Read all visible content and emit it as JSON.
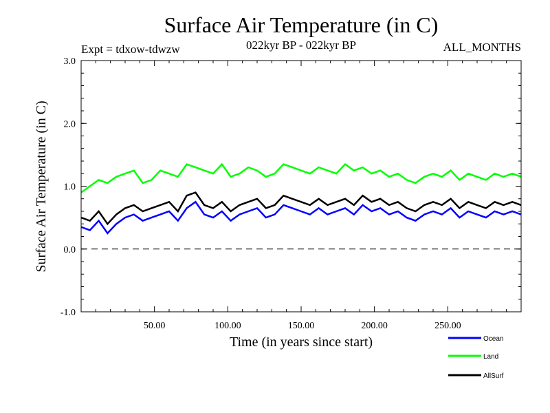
{
  "chart_data": {
    "type": "line",
    "title": "Surface Air Temperature (in C)",
    "subtitle_left": "Expt = tdxow-tdwzw",
    "subtitle_center": "022kyr BP - 022kyr BP",
    "subtitle_right": "ALL_MONTHS",
    "xlabel": "Time (in years since start)",
    "ylabel": "Surface Air Temperature (in C)",
    "xlim": [
      0,
      300
    ],
    "ylim": [
      -1.0,
      3.0
    ],
    "xticks": [
      50,
      100,
      150,
      200,
      250
    ],
    "xtick_labels": [
      "50.00",
      "100.00",
      "150.00",
      "200.00",
      "250.00"
    ],
    "yticks": [
      -1.0,
      0.0,
      1.0,
      2.0,
      3.0
    ],
    "ytick_labels": [
      "-1.0",
      "0.0",
      "1.0",
      "2.0",
      "3.0"
    ],
    "reference_line": 0.0,
    "grid": false,
    "legend_position": "bottom-right",
    "series": [
      {
        "name": "Ocean",
        "color": "#0000ff",
        "x": [
          0,
          6,
          12,
          18,
          24,
          30,
          36,
          42,
          48,
          54,
          60,
          66,
          72,
          78,
          84,
          90,
          96,
          102,
          108,
          114,
          120,
          126,
          132,
          138,
          144,
          150,
          156,
          162,
          168,
          174,
          180,
          186,
          192,
          198,
          204,
          210,
          216,
          222,
          228,
          234,
          240,
          246,
          252,
          258,
          264,
          270,
          276,
          282,
          288,
          294,
          300
        ],
        "values": [
          0.35,
          0.3,
          0.45,
          0.25,
          0.4,
          0.5,
          0.55,
          0.45,
          0.5,
          0.55,
          0.6,
          0.45,
          0.65,
          0.75,
          0.55,
          0.5,
          0.6,
          0.45,
          0.55,
          0.6,
          0.65,
          0.5,
          0.55,
          0.7,
          0.65,
          0.6,
          0.55,
          0.65,
          0.55,
          0.6,
          0.65,
          0.55,
          0.7,
          0.6,
          0.65,
          0.55,
          0.6,
          0.5,
          0.45,
          0.55,
          0.6,
          0.55,
          0.65,
          0.5,
          0.6,
          0.55,
          0.5,
          0.6,
          0.55,
          0.6,
          0.55
        ]
      },
      {
        "name": "Land",
        "color": "#00ff00",
        "x": [
          0,
          6,
          12,
          18,
          24,
          30,
          36,
          42,
          48,
          54,
          60,
          66,
          72,
          78,
          84,
          90,
          96,
          102,
          108,
          114,
          120,
          126,
          132,
          138,
          144,
          150,
          156,
          162,
          168,
          174,
          180,
          186,
          192,
          198,
          204,
          210,
          216,
          222,
          228,
          234,
          240,
          246,
          252,
          258,
          264,
          270,
          276,
          282,
          288,
          294,
          300
        ],
        "values": [
          0.9,
          1.0,
          1.1,
          1.05,
          1.15,
          1.2,
          1.25,
          1.05,
          1.1,
          1.25,
          1.2,
          1.15,
          1.35,
          1.3,
          1.25,
          1.2,
          1.35,
          1.15,
          1.2,
          1.3,
          1.25,
          1.15,
          1.2,
          1.35,
          1.3,
          1.25,
          1.2,
          1.3,
          1.25,
          1.2,
          1.35,
          1.25,
          1.3,
          1.2,
          1.25,
          1.15,
          1.2,
          1.1,
          1.05,
          1.15,
          1.2,
          1.15,
          1.25,
          1.1,
          1.2,
          1.15,
          1.1,
          1.2,
          1.15,
          1.2,
          1.15
        ]
      },
      {
        "name": "AllSurf",
        "color": "#000000",
        "x": [
          0,
          6,
          12,
          18,
          24,
          30,
          36,
          42,
          48,
          54,
          60,
          66,
          72,
          78,
          84,
          90,
          96,
          102,
          108,
          114,
          120,
          126,
          132,
          138,
          144,
          150,
          156,
          162,
          168,
          174,
          180,
          186,
          192,
          198,
          204,
          210,
          216,
          222,
          228,
          234,
          240,
          246,
          252,
          258,
          264,
          270,
          276,
          282,
          288,
          294,
          300
        ],
        "values": [
          0.5,
          0.45,
          0.6,
          0.4,
          0.55,
          0.65,
          0.7,
          0.6,
          0.65,
          0.7,
          0.75,
          0.6,
          0.85,
          0.9,
          0.7,
          0.65,
          0.75,
          0.6,
          0.7,
          0.75,
          0.8,
          0.65,
          0.7,
          0.85,
          0.8,
          0.75,
          0.7,
          0.8,
          0.7,
          0.75,
          0.8,
          0.7,
          0.85,
          0.75,
          0.8,
          0.7,
          0.75,
          0.65,
          0.6,
          0.7,
          0.75,
          0.7,
          0.8,
          0.65,
          0.75,
          0.7,
          0.65,
          0.75,
          0.7,
          0.75,
          0.7
        ]
      }
    ]
  }
}
